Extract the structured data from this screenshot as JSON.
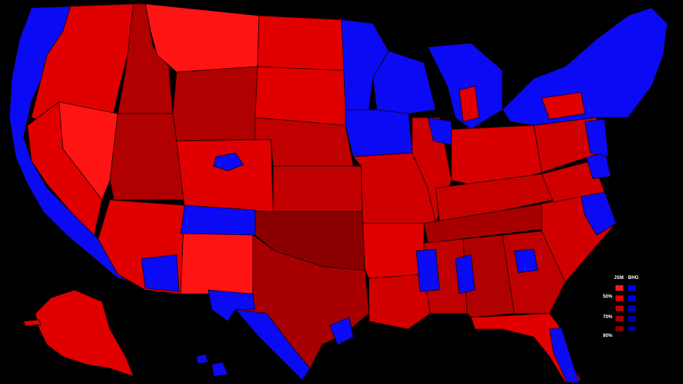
{
  "legend": {
    "candidates": [
      "JSM",
      "BHO"
    ],
    "levels": [
      "50%",
      "70%",
      "90%"
    ],
    "red_shades": [
      "#ff1a1a",
      "#e60000",
      "#c00000",
      "#a00000",
      "#800000"
    ],
    "blue_shades": [
      "#0000ff",
      "#0000e0",
      "#0000c0",
      "#0000a0",
      "#000080"
    ]
  }
}
